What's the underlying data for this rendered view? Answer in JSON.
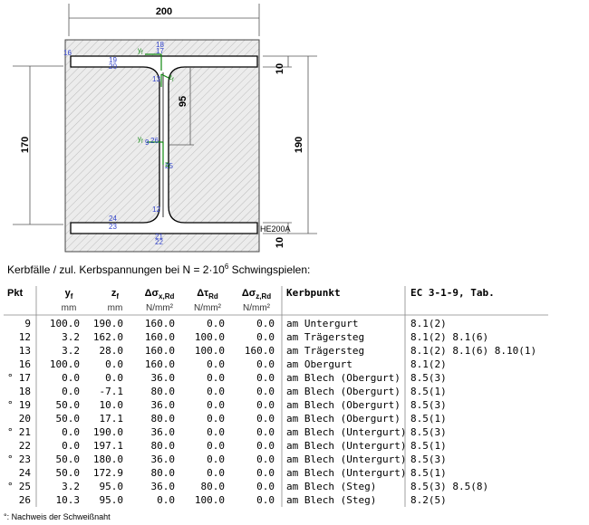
{
  "figure": {
    "dimensions": {
      "width": "200",
      "left_height": "170",
      "right_height": "190",
      "top_thickness": "10",
      "bottom_thickness": "10",
      "web_height": "95"
    },
    "section_label": "HE200A",
    "axis_labels": [
      {
        "symbol": "y",
        "sub": "f"
      },
      {
        "symbol": "z",
        "sub": "f"
      },
      {
        "symbol": "y",
        "sub": "f"
      },
      {
        "symbol": "z",
        "sub": "f"
      }
    ],
    "point_labels": [
      "16",
      "18",
      "17",
      "19",
      "20",
      "13",
      "12",
      "24",
      "23",
      "21",
      "22",
      "26",
      "25",
      "9"
    ]
  },
  "caption": {
    "before": "Kerbfälle / zul. Kerbspannungen bei N = 2·10",
    "sup": "6",
    "after": " Schwingspielen:"
  },
  "table": {
    "header": [
      {
        "symbol": "Pkt"
      },
      {
        "symbol": "y",
        "sub": "f",
        "unit": "mm"
      },
      {
        "symbol": "z",
        "sub": "f",
        "unit": "mm"
      },
      {
        "symbol": "Δσ",
        "sub": "x,Rd",
        "unit": "N/mm²"
      },
      {
        "symbol": "Δτ",
        "sub": "Rd",
        "unit": "N/mm²"
      },
      {
        "symbol": "Δσ",
        "sub": "z,Rd",
        "unit": "N/mm²"
      },
      {
        "symbol": "Kerbpunkt"
      },
      {
        "symbol": "EC 3-1-9, Tab."
      }
    ],
    "rows": [
      {
        "cells": [
          "9",
          "100.0",
          "190.0",
          "160.0",
          "0.0",
          "0.0",
          "am Untergurt",
          "8.1(2)"
        ]
      },
      {
        "cells": [
          "12",
          "3.2",
          "162.0",
          "160.0",
          "100.0",
          "0.0",
          "am Trägersteg",
          "8.1(2) 8.1(6)"
        ]
      },
      {
        "cells": [
          "13",
          "3.2",
          "28.0",
          "160.0",
          "100.0",
          "160.0",
          "am Trägersteg",
          "8.1(2) 8.1(6) 8.10(1)"
        ]
      },
      {
        "cells": [
          "16",
          "100.0",
          "0.0",
          "160.0",
          "0.0",
          "0.0",
          "am Obergurt",
          "8.1(2)"
        ]
      },
      {
        "marker": "°",
        "cells": [
          "17",
          "0.0",
          "0.0",
          "36.0",
          "0.0",
          "0.0",
          "am Blech (Obergurt)",
          "8.5(3)"
        ]
      },
      {
        "cells": [
          "18",
          "0.0",
          "-7.1",
          "80.0",
          "0.0",
          "0.0",
          "am Blech (Obergurt)",
          "8.5(1)"
        ]
      },
      {
        "marker": "°",
        "cells": [
          "19",
          "50.0",
          "10.0",
          "36.0",
          "0.0",
          "0.0",
          "am Blech (Obergurt)",
          "8.5(3)"
        ]
      },
      {
        "cells": [
          "20",
          "50.0",
          "17.1",
          "80.0",
          "0.0",
          "0.0",
          "am Blech (Obergurt)",
          "8.5(1)"
        ]
      },
      {
        "marker": "°",
        "cells": [
          "21",
          "0.0",
          "190.0",
          "36.0",
          "0.0",
          "0.0",
          "am Blech (Untergurt)",
          "8.5(3)"
        ]
      },
      {
        "cells": [
          "22",
          "0.0",
          "197.1",
          "80.0",
          "0.0",
          "0.0",
          "am Blech (Untergurt)",
          "8.5(1)"
        ]
      },
      {
        "marker": "°",
        "cells": [
          "23",
          "50.0",
          "180.0",
          "36.0",
          "0.0",
          "0.0",
          "am Blech (Untergurt)",
          "8.5(3)"
        ]
      },
      {
        "cells": [
          "24",
          "50.0",
          "172.9",
          "80.0",
          "0.0",
          "0.0",
          "am Blech (Untergurt)",
          "8.5(1)"
        ]
      },
      {
        "marker": "°",
        "cells": [
          "25",
          "3.2",
          "95.0",
          "36.0",
          "80.0",
          "0.0",
          "am Blech (Steg)",
          "8.5(3) 8.5(8)"
        ]
      },
      {
        "cells": [
          "26",
          "10.3",
          "95.0",
          "0.0",
          "100.0",
          "0.0",
          "am Blech (Steg)",
          "8.2(5)"
        ]
      }
    ]
  },
  "footnote": "°: Nachweis der Schweißnaht"
}
